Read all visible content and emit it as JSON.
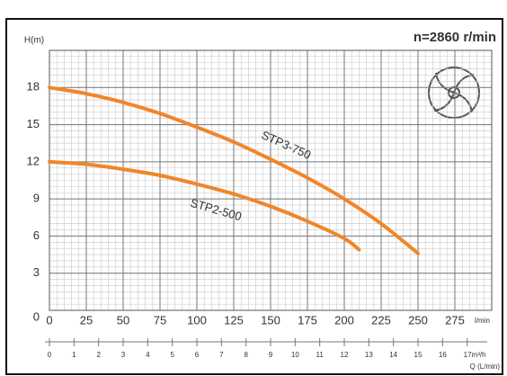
{
  "chart_data": {
    "type": "line",
    "y_label": "H(m)",
    "speed_label": "n=2860 r/min",
    "x_unit": "l/min",
    "x2_label": "Q (L/min)",
    "xlim": [
      0,
      300
    ],
    "xticks": [
      0,
      25,
      50,
      75,
      100,
      125,
      150,
      175,
      200,
      225,
      250,
      275
    ],
    "ylim": [
      0,
      21
    ],
    "yticks": [
      0,
      3,
      6,
      9,
      12,
      15,
      18
    ],
    "x2lim": [
      0,
      18
    ],
    "x2ticks": [
      0,
      1,
      2,
      3,
      4,
      5,
      6,
      7,
      8,
      9,
      10,
      11,
      12,
      13,
      14,
      15,
      16,
      {
        "value": 17,
        "label": "17m³/h"
      }
    ],
    "grid": true,
    "minor_grid": true,
    "series": [
      {
        "name": "STP3-750",
        "color": "#f0862a",
        "x": [
          0,
          25,
          50,
          75,
          100,
          125,
          150,
          175,
          200,
          225,
          250
        ],
        "values": [
          18,
          17.5,
          16.8,
          15.9,
          14.8,
          13.6,
          12.2,
          10.7,
          9.0,
          7.0,
          4.6
        ]
      },
      {
        "name": "STP2-500",
        "color": "#f0862a",
        "x": [
          0,
          25,
          50,
          75,
          100,
          125,
          150,
          175,
          200,
          210
        ],
        "values": [
          12,
          11.8,
          11.4,
          10.9,
          10.2,
          9.4,
          8.4,
          7.2,
          5.8,
          4.9
        ]
      }
    ]
  }
}
